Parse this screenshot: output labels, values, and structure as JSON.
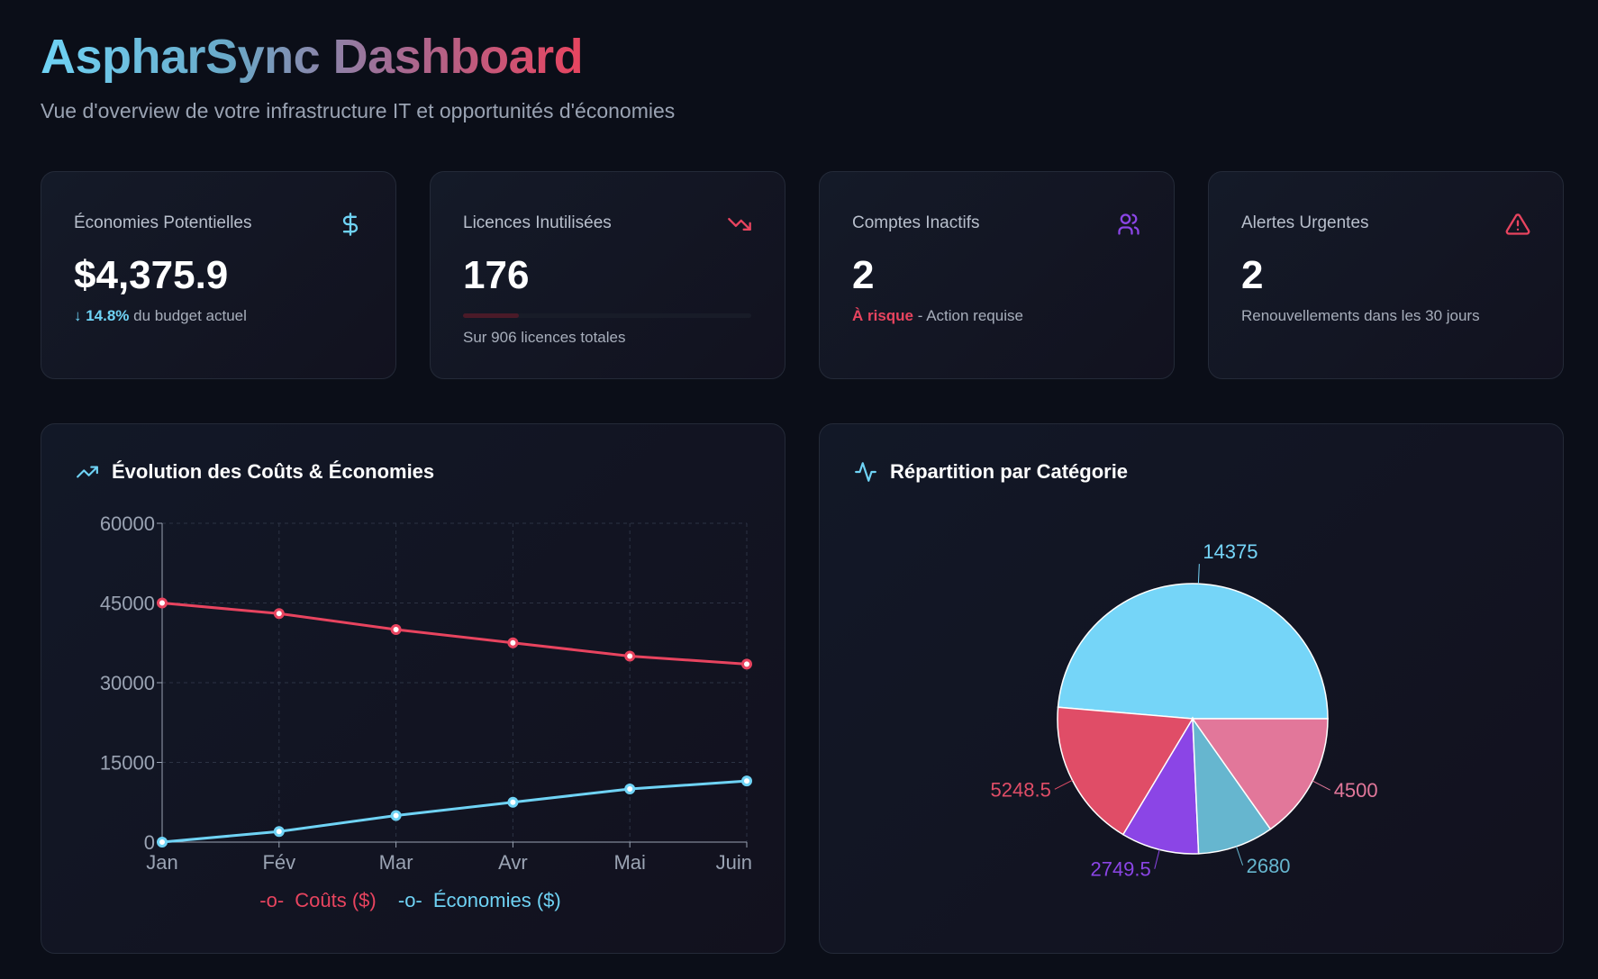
{
  "header": {
    "title": "AspharSync Dashboard",
    "subtitle": "Vue d'overview de votre infrastructure IT et opportunités d'économies"
  },
  "cards": [
    {
      "label": "Économies Potentielles",
      "value": "$4,375.9",
      "icon": "dollar-icon",
      "icon_color": "#6fd3f5",
      "delta": "↓ 14.8%",
      "delta_text": " du budget actuel"
    },
    {
      "label": "Licences Inutilisées",
      "value": "176",
      "icon": "trending-down-icon",
      "icon_color": "#e8445f",
      "progress": 0.194,
      "sub": "Sur 906 licences totales"
    },
    {
      "label": "Comptes Inactifs",
      "value": "2",
      "icon": "users-icon",
      "icon_color": "#8b45e6",
      "risk": "À risque",
      "risk_text": " - Action requise"
    },
    {
      "label": "Alertes Urgentes",
      "value": "2",
      "icon": "alert-triangle-icon",
      "icon_color": "#e8445f",
      "sub": "Renouvellements dans les 30 jours"
    }
  ],
  "line_panel": {
    "title": "Évolution des Coûts & Économies",
    "icon": "trending-up-icon"
  },
  "pie_panel": {
    "title": "Répartition par Catégorie",
    "icon": "activity-icon"
  },
  "chart_data": [
    {
      "type": "line",
      "categories": [
        "Jan",
        "Fév",
        "Mar",
        "Avr",
        "Mai",
        "Juin"
      ],
      "ylim": [
        0,
        60000
      ],
      "yticks": [
        "0",
        "15000",
        "30000",
        "45000",
        "60000"
      ],
      "grid": true,
      "legend": "bottom",
      "series": [
        {
          "name": "Coûts ($)",
          "color": "#e8445f",
          "values": [
            45000,
            43000,
            40000,
            37500,
            35000,
            33500
          ]
        },
        {
          "name": "Économies ($)",
          "color": "#6fd3f5",
          "values": [
            0,
            2000,
            5000,
            7500,
            10000,
            11500
          ]
        }
      ]
    },
    {
      "type": "pie",
      "values": [
        14375,
        5248.5,
        2749.5,
        2680,
        4500
      ],
      "labels": [
        "14375",
        "5248.5",
        "2749.5",
        "2680",
        "4500"
      ],
      "colors": [
        "#75d5f8",
        "#e04d67",
        "#8b45e6",
        "#66b6cf",
        "#e2779a"
      ]
    }
  ]
}
